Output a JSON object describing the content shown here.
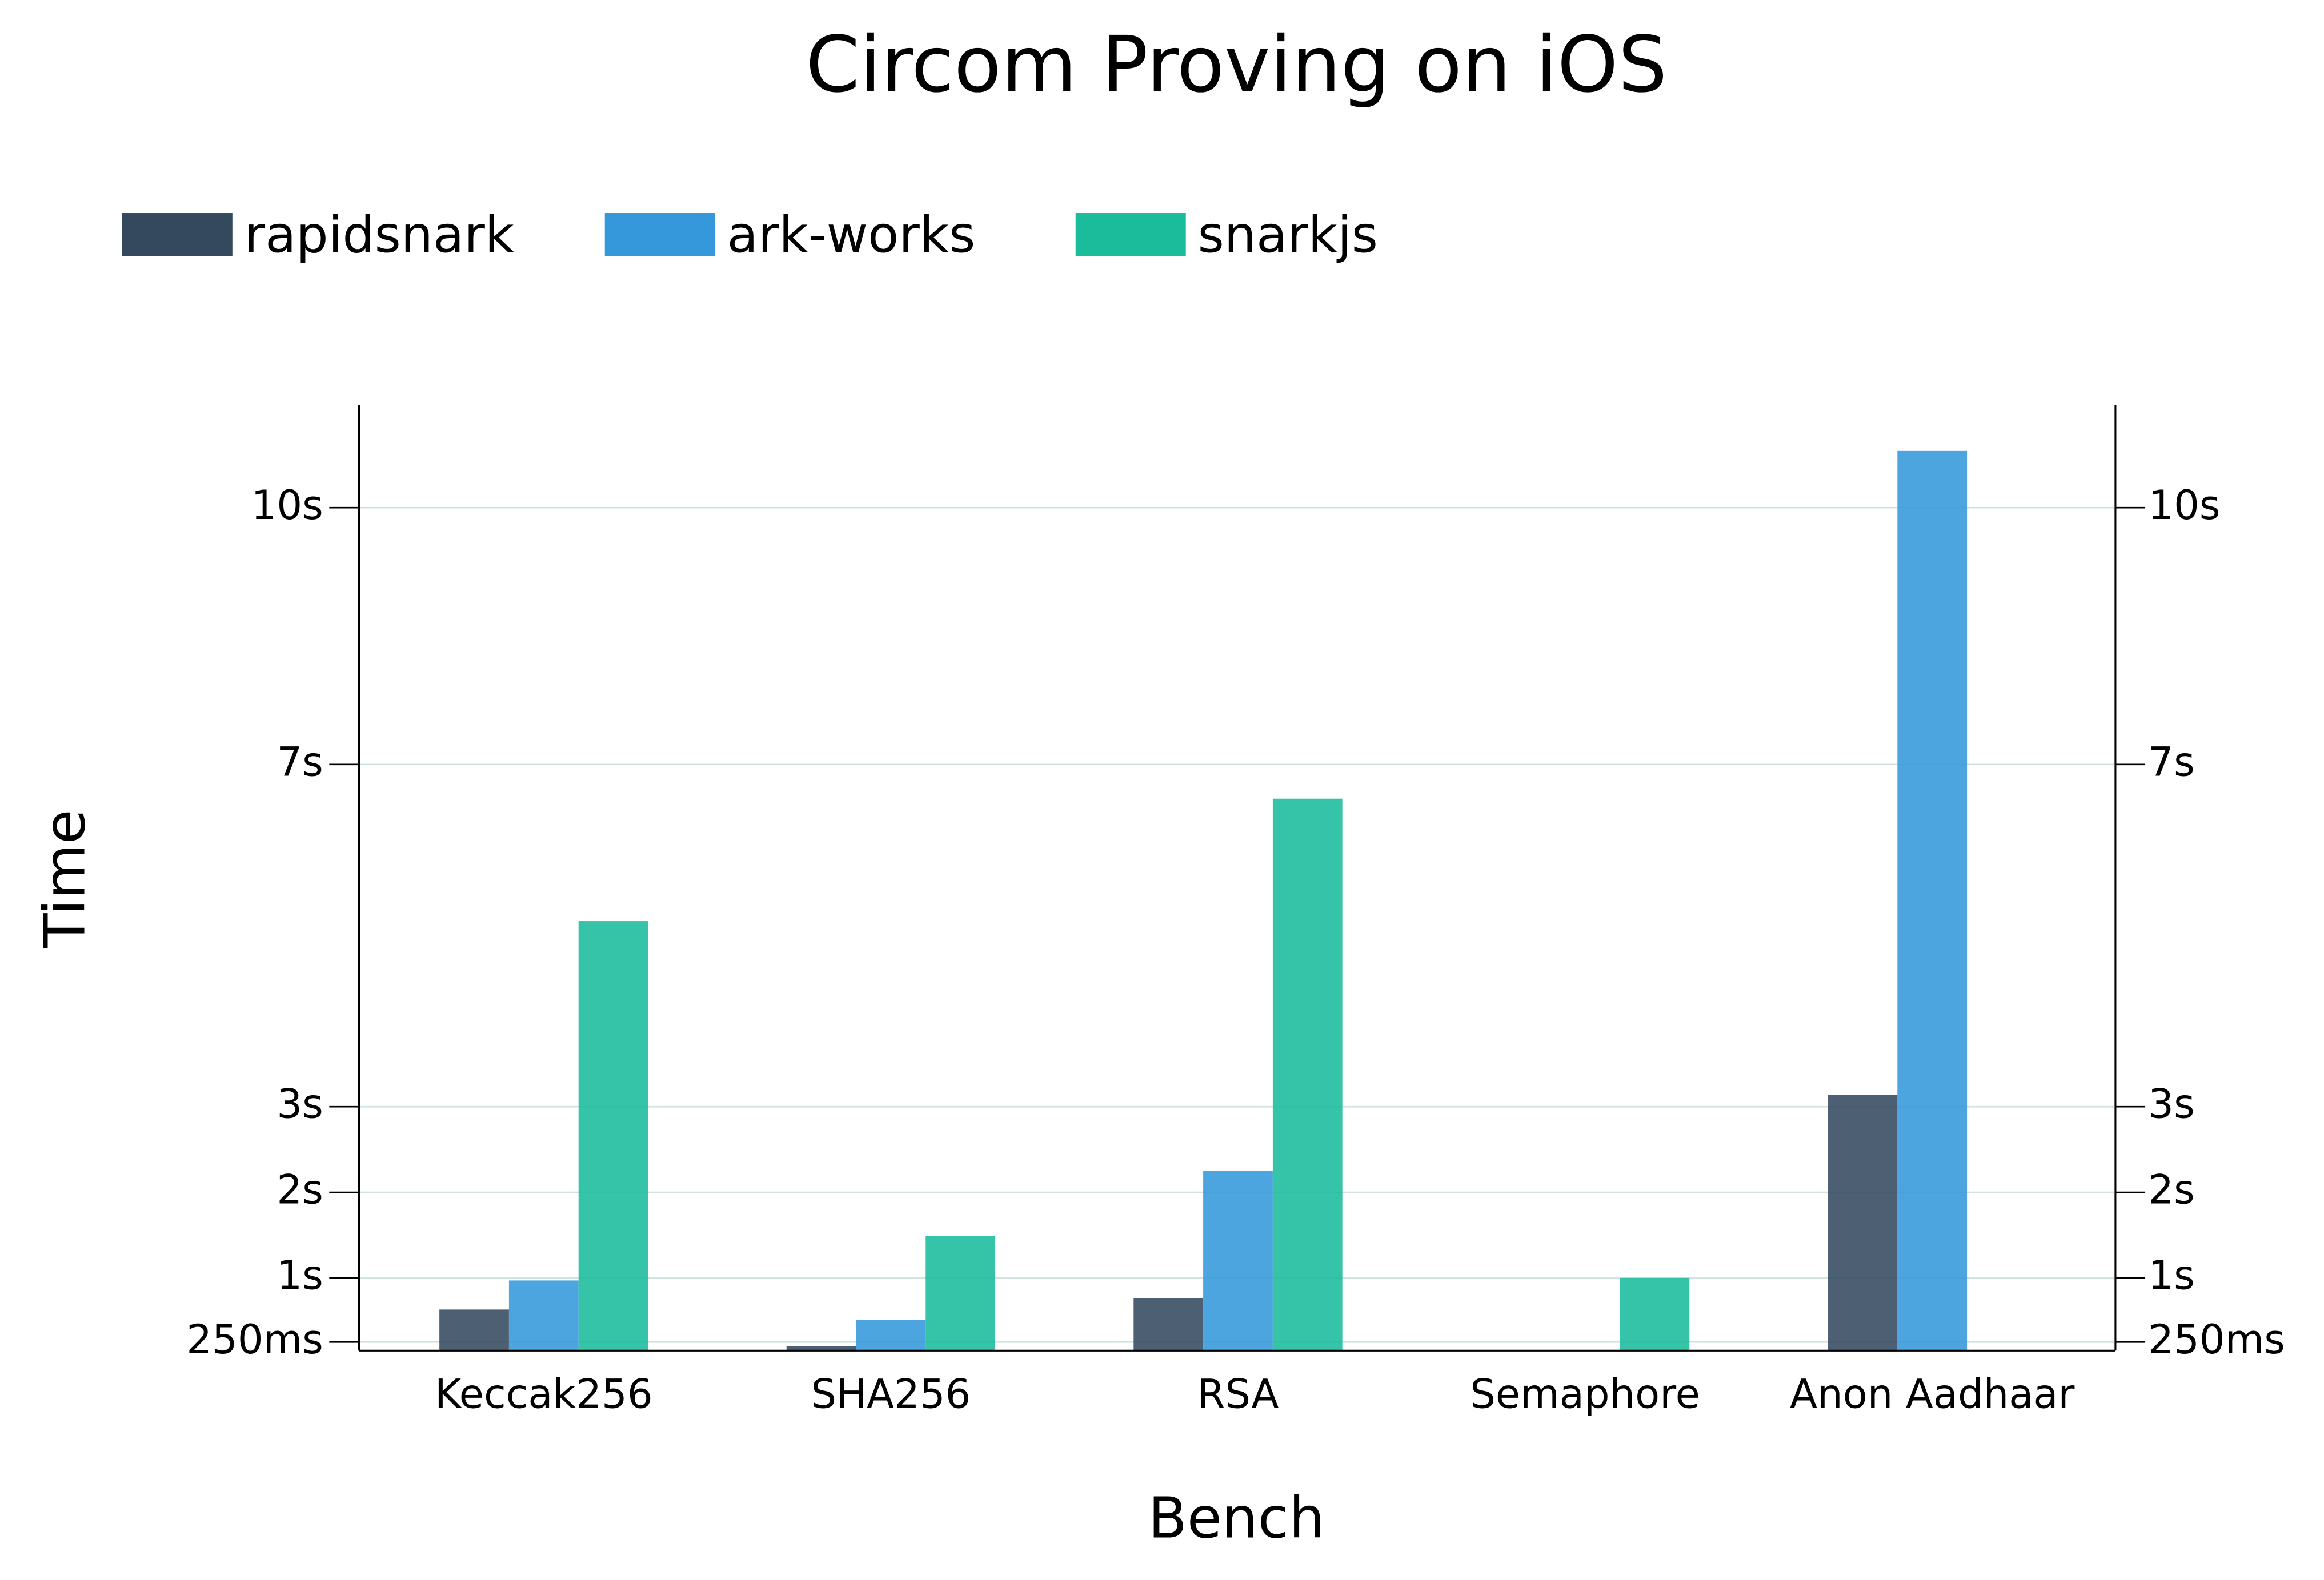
{
  "chart_data": {
    "type": "bar",
    "title": "Circom Proving on iOS",
    "x_label": "Bench",
    "y_label": "Time",
    "categories": [
      "Keccak256",
      "SHA256",
      "RSA",
      "Semaphore",
      "Anon Aadhaar"
    ],
    "series": [
      {
        "name": "rapidsnark",
        "color": "#34495e",
        "values": [
          0.63,
          0.2,
          0.76,
          null,
          3.14
        ]
      },
      {
        "name": "ark-works",
        "color": "#3498db",
        "values": [
          0.97,
          0.51,
          2.25,
          null,
          10.67
        ]
      },
      {
        "name": "snarkjs",
        "color": "#1abc9c",
        "values": [
          5.17,
          1.49,
          6.6,
          1.0,
          null
        ]
      }
    ],
    "ylim": [
      0.15,
      11.2
    ],
    "yticks": [
      {
        "value": 0.25,
        "label": "250ms"
      },
      {
        "value": 1,
        "label": "1s"
      },
      {
        "value": 2,
        "label": "2s"
      },
      {
        "value": 3,
        "label": "3s"
      },
      {
        "value": 7,
        "label": "7s"
      },
      {
        "value": 10,
        "label": "10s"
      }
    ],
    "grid": true,
    "legend": "top-left"
  }
}
